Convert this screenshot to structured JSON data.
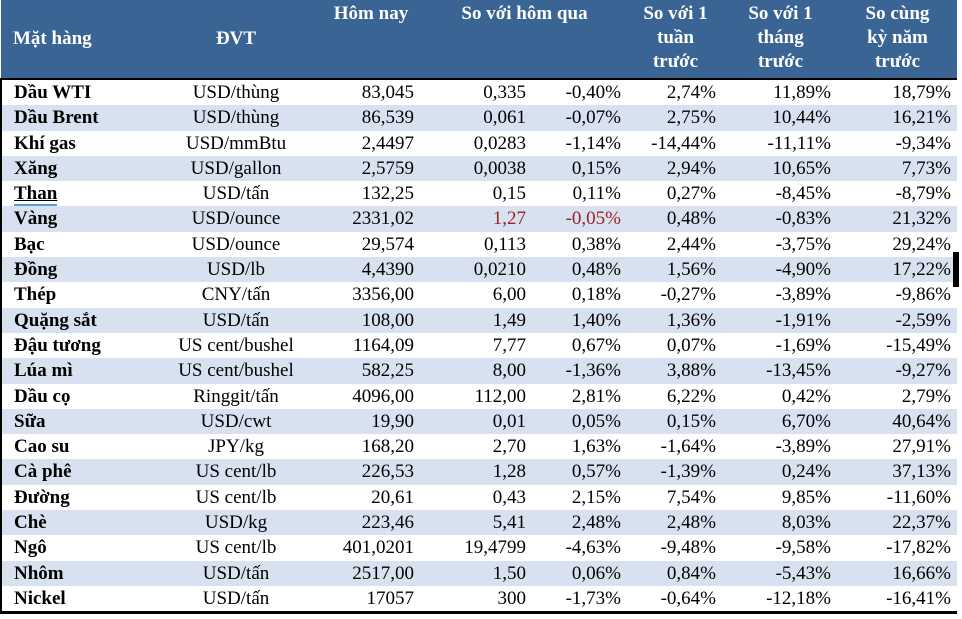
{
  "colors": {
    "header_bg": "#3A6494",
    "stripe_bg": "#D8E1F0",
    "highlight_red": "#9C2123",
    "underline_blue": "#5B9BD5"
  },
  "table": {
    "header": {
      "commodity": "Mặt hàng",
      "unit": "ĐVT",
      "today": "Hôm nay",
      "vs_yesterday": "So với hôm qua",
      "vs_week": "So với 1\ntuần\ntrước",
      "vs_month": "So với 1\ntháng\ntrước",
      "vs_year": "So cùng\nkỳ năm\ntrước"
    },
    "rows": [
      {
        "name": "Dầu WTI",
        "unit": "USD/thùng",
        "today": "83,045",
        "change": "0,335",
        "change_pct": "-0,40%",
        "week_pct": "2,74%",
        "month_pct": "11,89%",
        "year_pct": "18,79%"
      },
      {
        "name": "Dầu Brent",
        "unit": "USD/thùng",
        "today": "86,539",
        "change": "0,061",
        "change_pct": "-0,07%",
        "week_pct": "2,75%",
        "month_pct": "10,44%",
        "year_pct": "16,21%"
      },
      {
        "name": "Khí gas",
        "unit": "USD/mmBtu",
        "today": "2,4497",
        "change": "0,0283",
        "change_pct": "-1,14%",
        "week_pct": "-14,44%",
        "month_pct": "-11,11%",
        "year_pct": "-9,34%"
      },
      {
        "name": "Xăng",
        "unit": "USD/gallon",
        "today": "2,5759",
        "change": "0,0038",
        "change_pct": "0,15%",
        "week_pct": "2,94%",
        "month_pct": "10,65%",
        "year_pct": "7,73%"
      },
      {
        "name": "Than",
        "unit": "USD/tấn",
        "today": "132,25",
        "change": "0,15",
        "change_pct": "0,11%",
        "week_pct": "0,27%",
        "month_pct": "-8,45%",
        "year_pct": "-8,79%",
        "underline": true
      },
      {
        "name": "Vàng",
        "unit": "USD/ounce",
        "today": "2331,02",
        "change": "1,27",
        "change_pct": "-0,05%",
        "week_pct": "0,48%",
        "month_pct": "-0,83%",
        "year_pct": "21,32%",
        "red": true
      },
      {
        "name": "Bạc",
        "unit": "USD/ounce",
        "today": "29,574",
        "change": "0,113",
        "change_pct": "0,38%",
        "week_pct": "2,44%",
        "month_pct": "-3,75%",
        "year_pct": "29,24%"
      },
      {
        "name": "Đồng",
        "unit": "USD/lb",
        "today": "4,4390",
        "change": "0,0210",
        "change_pct": "0,48%",
        "week_pct": "1,56%",
        "month_pct": "-4,90%",
        "year_pct": "17,22%"
      },
      {
        "name": "Thép",
        "unit": "CNY/tấn",
        "today": "3356,00",
        "change": "6,00",
        "change_pct": "0,18%",
        "week_pct": "-0,27%",
        "month_pct": "-3,89%",
        "year_pct": "-9,86%"
      },
      {
        "name": "Quặng sắt",
        "unit": "USD/tấn",
        "today": "108,00",
        "change": "1,49",
        "change_pct": "1,40%",
        "week_pct": "1,36%",
        "month_pct": "-1,91%",
        "year_pct": "-2,59%"
      },
      {
        "name": "Đậu tương",
        "unit": "US cent/bushel",
        "today": "1164,09",
        "change": "7,77",
        "change_pct": "0,67%",
        "week_pct": "0,07%",
        "month_pct": "-1,69%",
        "year_pct": "-15,49%"
      },
      {
        "name": "Lúa mì",
        "unit": "US cent/bushel",
        "today": "582,25",
        "change": "8,00",
        "change_pct": "-1,36%",
        "week_pct": "3,88%",
        "month_pct": "-13,45%",
        "year_pct": "-9,27%"
      },
      {
        "name": "Dầu cọ",
        "unit": "Ringgit/tấn",
        "today": "4096,00",
        "change": "112,00",
        "change_pct": "2,81%",
        "week_pct": "6,22%",
        "month_pct": "0,42%",
        "year_pct": "2,79%"
      },
      {
        "name": "Sữa",
        "unit": "USD/cwt",
        "today": "19,90",
        "change": "0,01",
        "change_pct": "0,05%",
        "week_pct": "0,15%",
        "month_pct": "6,70%",
        "year_pct": "40,64%"
      },
      {
        "name": "Cao su",
        "unit": "JPY/kg",
        "today": "168,20",
        "change": "2,70",
        "change_pct": "1,63%",
        "week_pct": "-1,64%",
        "month_pct": "-3,89%",
        "year_pct": "27,91%"
      },
      {
        "name": "Cà phê",
        "unit": "US cent/lb",
        "today": "226,53",
        "change": "1,28",
        "change_pct": "0,57%",
        "week_pct": "-1,39%",
        "month_pct": "0,24%",
        "year_pct": "37,13%"
      },
      {
        "name": "Đường",
        "unit": "US cent/lb",
        "today": "20,61",
        "change": "0,43",
        "change_pct": "2,15%",
        "week_pct": "7,54%",
        "month_pct": "9,85%",
        "year_pct": "-11,60%"
      },
      {
        "name": "Chè",
        "unit": "USD/kg",
        "today": "223,46",
        "change": "5,41",
        "change_pct": "2,48%",
        "week_pct": "2,48%",
        "month_pct": "8,03%",
        "year_pct": "22,37%"
      },
      {
        "name": "Ngô",
        "unit": "US cent/lb",
        "today": "401,0201",
        "change": "19,4799",
        "change_pct": "-4,63%",
        "week_pct": "-9,48%",
        "month_pct": "-9,58%",
        "year_pct": "-17,82%"
      },
      {
        "name": "Nhôm",
        "unit": "USD/tấn",
        "today": "2517,00",
        "change": "1,50",
        "change_pct": "0,06%",
        "week_pct": "0,84%",
        "month_pct": "-5,43%",
        "year_pct": "16,66%"
      },
      {
        "name": "Nickel",
        "unit": "USD/tấn",
        "today": "17057",
        "change": "300",
        "change_pct": "-1,73%",
        "week_pct": "-0,64%",
        "month_pct": "-12,18%",
        "year_pct": "-16,41%"
      }
    ]
  }
}
